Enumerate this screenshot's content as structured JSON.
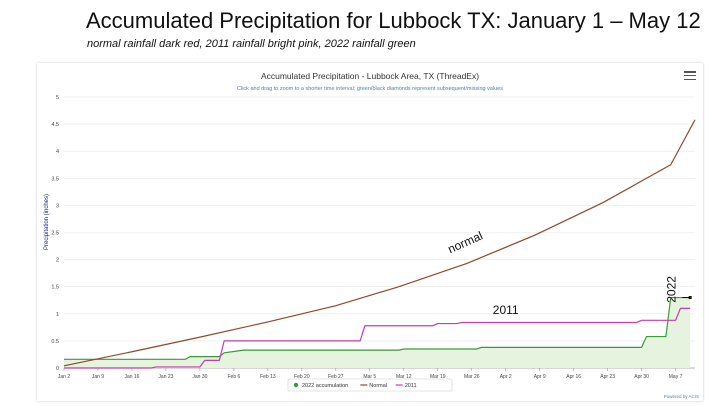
{
  "slide": {
    "title": "Accumulated Precipitation for Lubbock TX: January 1 – May 12",
    "subtitle": "normal rainfall dark red, 2011 rainfall bright pink, 2022 rainfall green"
  },
  "chart_data": {
    "type": "line",
    "title": "Accumulated Precipitation - Lubbock Area, TX (ThreadEx)",
    "subtitle": "Click and drag to zoom to a shorter time interval; green/black diamonds represent subsequent/missing values",
    "ylabel": "Precipitation (inches)",
    "xlabel": "",
    "ylim": [
      0,
      5
    ],
    "yticks": [
      "0",
      "0.5",
      "1",
      "1.5",
      "2",
      "2.5",
      "3",
      "3.5",
      "4",
      "4.5",
      "5"
    ],
    "xlim": [
      "2022-01-02",
      "2022-05-12"
    ],
    "xticks": [
      "Jan 2",
      "Jan 9",
      "Jan 16",
      "Jan 23",
      "Jan 30",
      "Feb 6",
      "Feb 13",
      "Feb 20",
      "Feb 27",
      "Mar 5",
      "Mar 12",
      "Mar 19",
      "Mar 26",
      "Apr 2",
      "Apr 9",
      "Apr 16",
      "Apr 23",
      "Apr 30",
      "May 7"
    ],
    "grid": true,
    "legend_position": "bottom",
    "series": [
      {
        "name": "2022 accumulation",
        "color": "#3a9a3a",
        "fill": "#e6f3df",
        "x": [
          "2022-01-02",
          "2022-01-27",
          "2022-01-28",
          "2022-02-03",
          "2022-02-04",
          "2022-02-08",
          "2022-03-12",
          "2022-03-13",
          "2022-03-28",
          "2022-03-29",
          "2022-05-01",
          "2022-05-02",
          "2022-05-06",
          "2022-05-07",
          "2022-05-11"
        ],
        "values": [
          0.16,
          0.16,
          0.21,
          0.21,
          0.28,
          0.33,
          0.33,
          0.35,
          0.35,
          0.38,
          0.38,
          0.58,
          0.58,
          1.3,
          1.3
        ]
      },
      {
        "name": "Normal",
        "color": "#8b4a2b",
        "x": [
          "2022-01-02",
          "2022-01-16",
          "2022-01-30",
          "2022-02-13",
          "2022-02-27",
          "2022-03-12",
          "2022-03-26",
          "2022-04-09",
          "2022-04-23",
          "2022-05-07",
          "2022-05-12"
        ],
        "values": [
          0.04,
          0.3,
          0.57,
          0.85,
          1.15,
          1.5,
          1.93,
          2.45,
          3.05,
          3.75,
          4.58
        ]
      },
      {
        "name": "2011",
        "color": "#c03fa8",
        "x": [
          "2022-01-02",
          "2022-01-20",
          "2022-01-21",
          "2022-01-30",
          "2022-01-31",
          "2022-02-03",
          "2022-02-04",
          "2022-03-04",
          "2022-03-05",
          "2022-03-19",
          "2022-03-20",
          "2022-03-24",
          "2022-03-25",
          "2022-04-30",
          "2022-05-01",
          "2022-05-08",
          "2022-05-09",
          "2022-05-11"
        ],
        "values": [
          0,
          0,
          0.02,
          0.02,
          0.14,
          0.14,
          0.5,
          0.5,
          0.78,
          0.78,
          0.82,
          0.82,
          0.84,
          0.84,
          0.88,
          0.88,
          1.1,
          1.1
        ]
      }
    ],
    "annotations": [
      {
        "text": "normal",
        "x": "2022-03-26",
        "y": 2.25,
        "color": "#111111",
        "rotation": -24
      },
      {
        "text": "2011",
        "x": "2022-04-03",
        "y": 1.0,
        "color": "#111111",
        "rotation": 0
      },
      {
        "text": "2022",
        "x": "2022-05-08",
        "y": 1.45,
        "color": "#111111",
        "rotation": -90
      }
    ],
    "credit": "Powered by ACIS"
  }
}
